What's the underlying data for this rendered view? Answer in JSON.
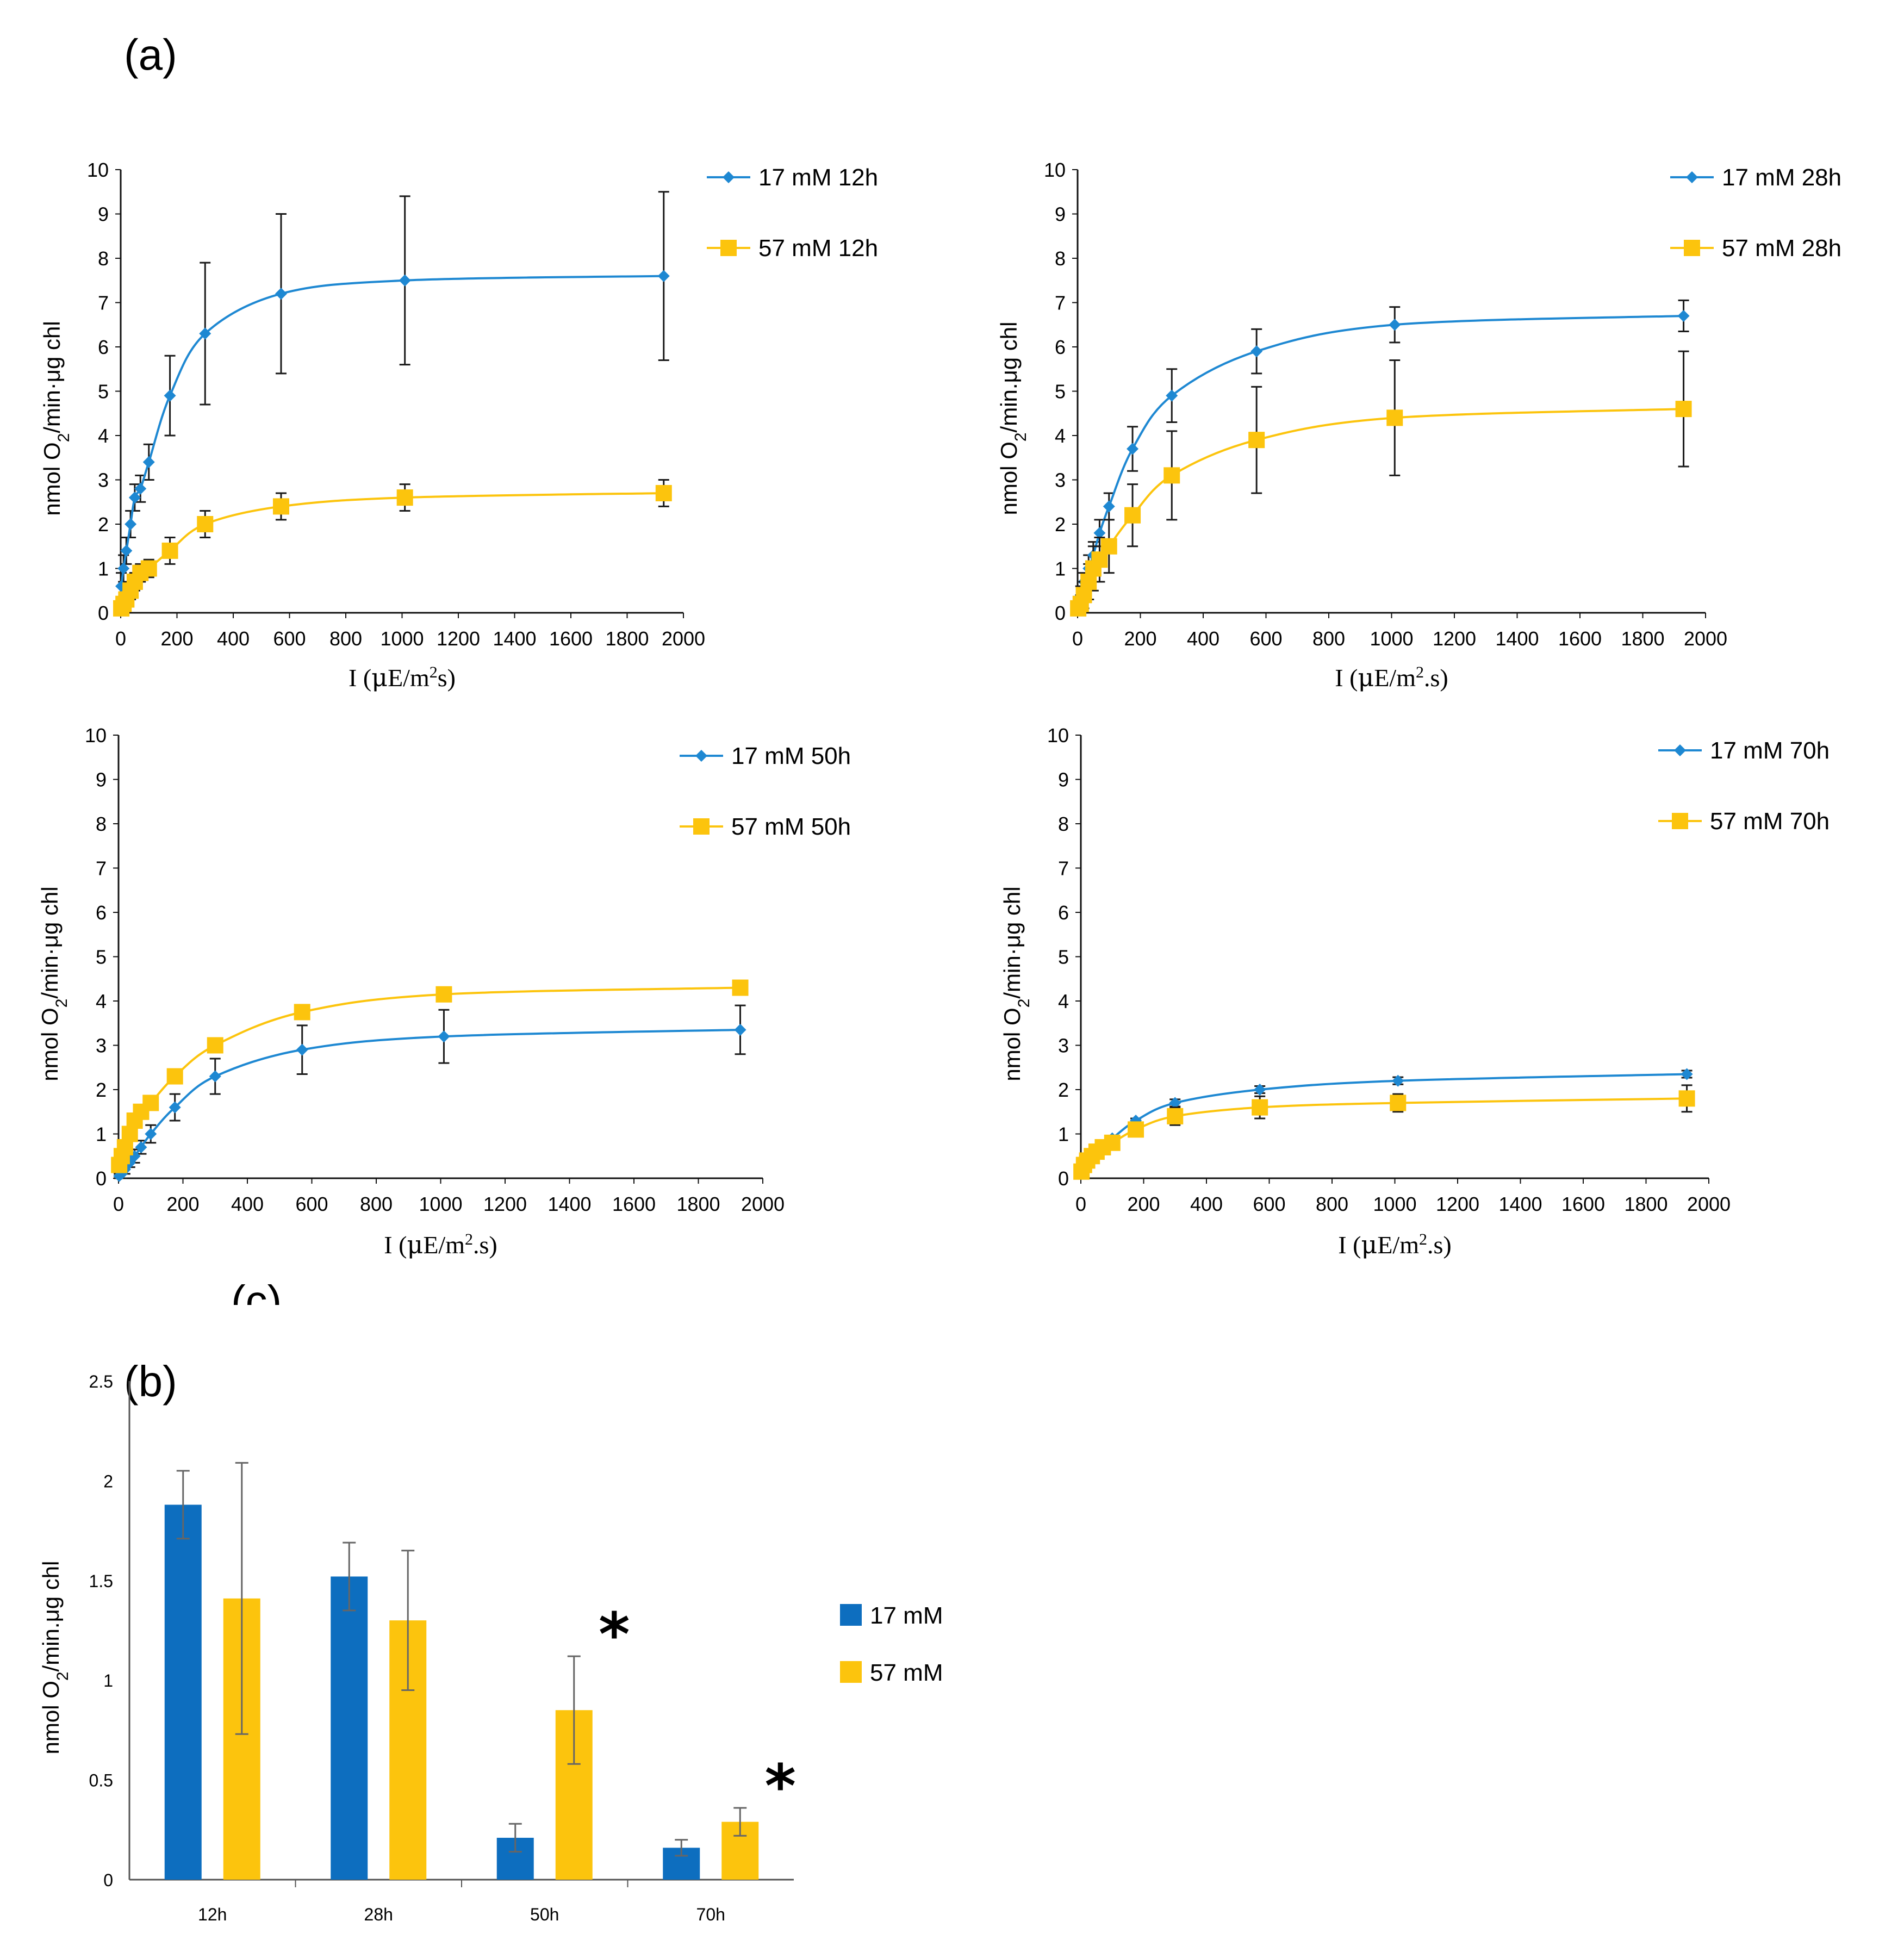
{
  "figure": {
    "panel_a_label": "(a)",
    "panel_b_label": "(b)",
    "stray_label": "(c)"
  },
  "colors": {
    "series_17mM": "#1e88d2",
    "series_57mM": "#fcc40d",
    "bar_17mM": "#0d6ebf",
    "bar_57mM": "#fcc40d",
    "error": "#1a1a1a"
  },
  "chart_data": [
    {
      "type": "line",
      "id": "chart-12h",
      "title": "",
      "xlabel_parts": [
        "I (",
        "μ",
        "E/m",
        "2",
        "s)"
      ],
      "ylabel_parts": [
        "nmol O",
        "2",
        "/min",
        "·",
        "μg chl"
      ],
      "xlim": [
        0,
        2000
      ],
      "ylim": [
        0,
        10
      ],
      "xticks": [
        0,
        200,
        400,
        600,
        800,
        1000,
        1200,
        1400,
        1600,
        1800,
        2000
      ],
      "yticks": [
        0,
        1,
        2,
        3,
        4,
        5,
        6,
        7,
        8,
        9,
        10
      ],
      "legend": [
        "17 mM 12h",
        "57 mM 12h"
      ],
      "series": [
        {
          "name": "17 mM 12h",
          "marker": "diamond",
          "x": [
            2,
            10,
            20,
            35,
            50,
            70,
            100,
            175,
            300,
            570,
            1010,
            1930
          ],
          "y": [
            0.6,
            1.0,
            1.4,
            2.0,
            2.6,
            2.8,
            3.4,
            4.9,
            6.3,
            7.2,
            7.5,
            7.6
          ],
          "err": [
            0.3,
            0.3,
            0.3,
            0.3,
            0.3,
            0.3,
            0.4,
            0.9,
            1.6,
            1.8,
            1.9,
            1.9
          ]
        },
        {
          "name": "57 mM 12h",
          "marker": "square",
          "x": [
            2,
            10,
            20,
            35,
            50,
            70,
            100,
            175,
            300,
            570,
            1010,
            1930
          ],
          "y": [
            0.1,
            0.2,
            0.3,
            0.5,
            0.7,
            0.9,
            1.0,
            1.4,
            2.0,
            2.4,
            2.6,
            2.7
          ],
          "err": [
            0.1,
            0.1,
            0.1,
            0.2,
            0.2,
            0.2,
            0.2,
            0.3,
            0.3,
            0.3,
            0.3,
            0.3
          ]
        }
      ]
    },
    {
      "type": "line",
      "id": "chart-28h",
      "title": "",
      "xlabel_parts": [
        "I (",
        "μ",
        "E/m",
        "2",
        ".s)"
      ],
      "ylabel_parts": [
        "nmol O",
        "2",
        "/min.",
        "μg chl"
      ],
      "xlim": [
        0,
        2000
      ],
      "ylim": [
        0,
        10
      ],
      "xticks": [
        0,
        200,
        400,
        600,
        800,
        1000,
        1200,
        1400,
        1600,
        1800,
        2000
      ],
      "yticks": [
        0,
        1,
        2,
        3,
        4,
        5,
        6,
        7,
        8,
        9,
        10
      ],
      "legend": [
        "17 mM 28h",
        "57 mM 28h"
      ],
      "series": [
        {
          "name": "17 mM 28h",
          "marker": "diamond",
          "x": [
            2,
            10,
            20,
            35,
            50,
            70,
            100,
            175,
            300,
            570,
            1010,
            1930
          ],
          "y": [
            0.2,
            0.4,
            0.7,
            1.0,
            1.3,
            1.8,
            2.4,
            3.7,
            4.9,
            5.9,
            6.5,
            6.7
          ],
          "err": [
            0.1,
            0.2,
            0.2,
            0.3,
            0.3,
            0.3,
            0.3,
            0.5,
            0.6,
            0.5,
            0.4,
            0.35
          ]
        },
        {
          "name": "57 mM 28h",
          "marker": "square",
          "x": [
            2,
            10,
            20,
            35,
            50,
            70,
            100,
            175,
            300,
            570,
            1010,
            1930
          ],
          "y": [
            0.1,
            0.2,
            0.4,
            0.7,
            1.0,
            1.2,
            1.5,
            2.2,
            3.1,
            3.9,
            4.4,
            4.6
          ],
          "err": [
            0.1,
            0.2,
            0.3,
            0.4,
            0.5,
            0.5,
            0.6,
            0.7,
            1.0,
            1.2,
            1.3,
            1.3
          ]
        }
      ]
    },
    {
      "type": "line",
      "id": "chart-50h",
      "title": "",
      "xlabel_parts": [
        "I (",
        "μ",
        "E/m",
        "2",
        ".s)"
      ],
      "ylabel_parts": [
        "nmol O",
        "2",
        "/min",
        "·",
        "μg chl"
      ],
      "xlim": [
        0,
        2000
      ],
      "ylim": [
        0,
        10
      ],
      "xticks": [
        0,
        200,
        400,
        600,
        800,
        1000,
        1200,
        1400,
        1600,
        1800,
        2000
      ],
      "yticks": [
        0,
        1,
        2,
        3,
        4,
        5,
        6,
        7,
        8,
        9,
        10
      ],
      "legend": [
        "17 mM 50h",
        "57 mM 50h"
      ],
      "series": [
        {
          "name": "17 mM 50h",
          "marker": "diamond",
          "x": [
            2,
            10,
            20,
            35,
            50,
            70,
            100,
            175,
            300,
            570,
            1010,
            1930
          ],
          "y": [
            0.05,
            0.1,
            0.2,
            0.35,
            0.5,
            0.7,
            1.0,
            1.6,
            2.3,
            2.9,
            3.2,
            3.35
          ],
          "err": [
            0.05,
            0.1,
            0.1,
            0.1,
            0.15,
            0.15,
            0.2,
            0.3,
            0.4,
            0.55,
            0.6,
            0.55
          ]
        },
        {
          "name": "57 mM 50h",
          "marker": "square",
          "x": [
            2,
            10,
            20,
            35,
            50,
            70,
            100,
            175,
            300,
            570,
            1010,
            1930
          ],
          "y": [
            0.3,
            0.5,
            0.7,
            1.0,
            1.3,
            1.5,
            1.7,
            2.3,
            3.0,
            3.75,
            4.15,
            4.3
          ],
          "err": [
            0.05,
            0.05,
            0.05,
            0.05,
            0.05,
            0.05,
            0.05,
            0.05,
            0.05,
            0.05,
            0.05,
            0.05
          ]
        }
      ]
    },
    {
      "type": "line",
      "id": "chart-70h",
      "title": "",
      "xlabel_parts": [
        "I (",
        "μ",
        "E/m",
        "2",
        ".s)"
      ],
      "ylabel_parts": [
        "nmol O",
        "2",
        "/min",
        "·",
        "μg chl"
      ],
      "xlim": [
        0,
        2000
      ],
      "ylim": [
        0,
        10
      ],
      "xticks": [
        0,
        200,
        400,
        600,
        800,
        1000,
        1200,
        1400,
        1600,
        1800,
        2000
      ],
      "yticks": [
        0,
        1,
        2,
        3,
        4,
        5,
        6,
        7,
        8,
        9,
        10
      ],
      "legend": [
        "17 mM 70h",
        "57 mM 70h"
      ],
      "series": [
        {
          "name": "17 mM 70h",
          "marker": "diamond",
          "x": [
            2,
            10,
            20,
            35,
            50,
            70,
            100,
            175,
            300,
            570,
            1010,
            1930
          ],
          "y": [
            0.1,
            0.2,
            0.3,
            0.45,
            0.6,
            0.75,
            0.9,
            1.3,
            1.7,
            2.0,
            2.2,
            2.35
          ],
          "err": [
            0.05,
            0.05,
            0.05,
            0.05,
            0.05,
            0.05,
            0.05,
            0.05,
            0.08,
            0.08,
            0.08,
            0.08
          ]
        },
        {
          "name": "57 mM 70h",
          "marker": "square",
          "x": [
            2,
            10,
            20,
            35,
            50,
            70,
            100,
            175,
            300,
            570,
            1010,
            1930
          ],
          "y": [
            0.15,
            0.3,
            0.4,
            0.5,
            0.6,
            0.7,
            0.8,
            1.1,
            1.4,
            1.6,
            1.7,
            1.8
          ],
          "err": [
            0.05,
            0.05,
            0.05,
            0.05,
            0.05,
            0.05,
            0.05,
            0.1,
            0.2,
            0.25,
            0.2,
            0.3
          ]
        }
      ]
    },
    {
      "type": "bar",
      "id": "chart-bars",
      "title": "",
      "xlabel": "",
      "ylabel_parts": [
        "nmol O",
        "2",
        "/min.",
        "μg chl"
      ],
      "ylim": [
        0,
        2.5
      ],
      "yticks": [
        "0",
        "0.5",
        "1",
        "1.5",
        "2",
        "2.5"
      ],
      "categories": [
        "12h",
        "28h",
        "50h",
        "70h"
      ],
      "legend": [
        "17 mM",
        "57 mM"
      ],
      "series": [
        {
          "name": "17 mM",
          "values": [
            1.88,
            1.52,
            0.21,
            0.16
          ],
          "err": [
            0.17,
            0.17,
            0.07,
            0.04
          ]
        },
        {
          "name": "57 mM",
          "values": [
            1.41,
            1.3,
            0.85,
            0.29
          ],
          "err": [
            0.68,
            0.35,
            0.27,
            0.07
          ]
        }
      ],
      "annotations": [
        "*",
        "*"
      ],
      "significant_categories": [
        "50h",
        "70h"
      ]
    }
  ]
}
